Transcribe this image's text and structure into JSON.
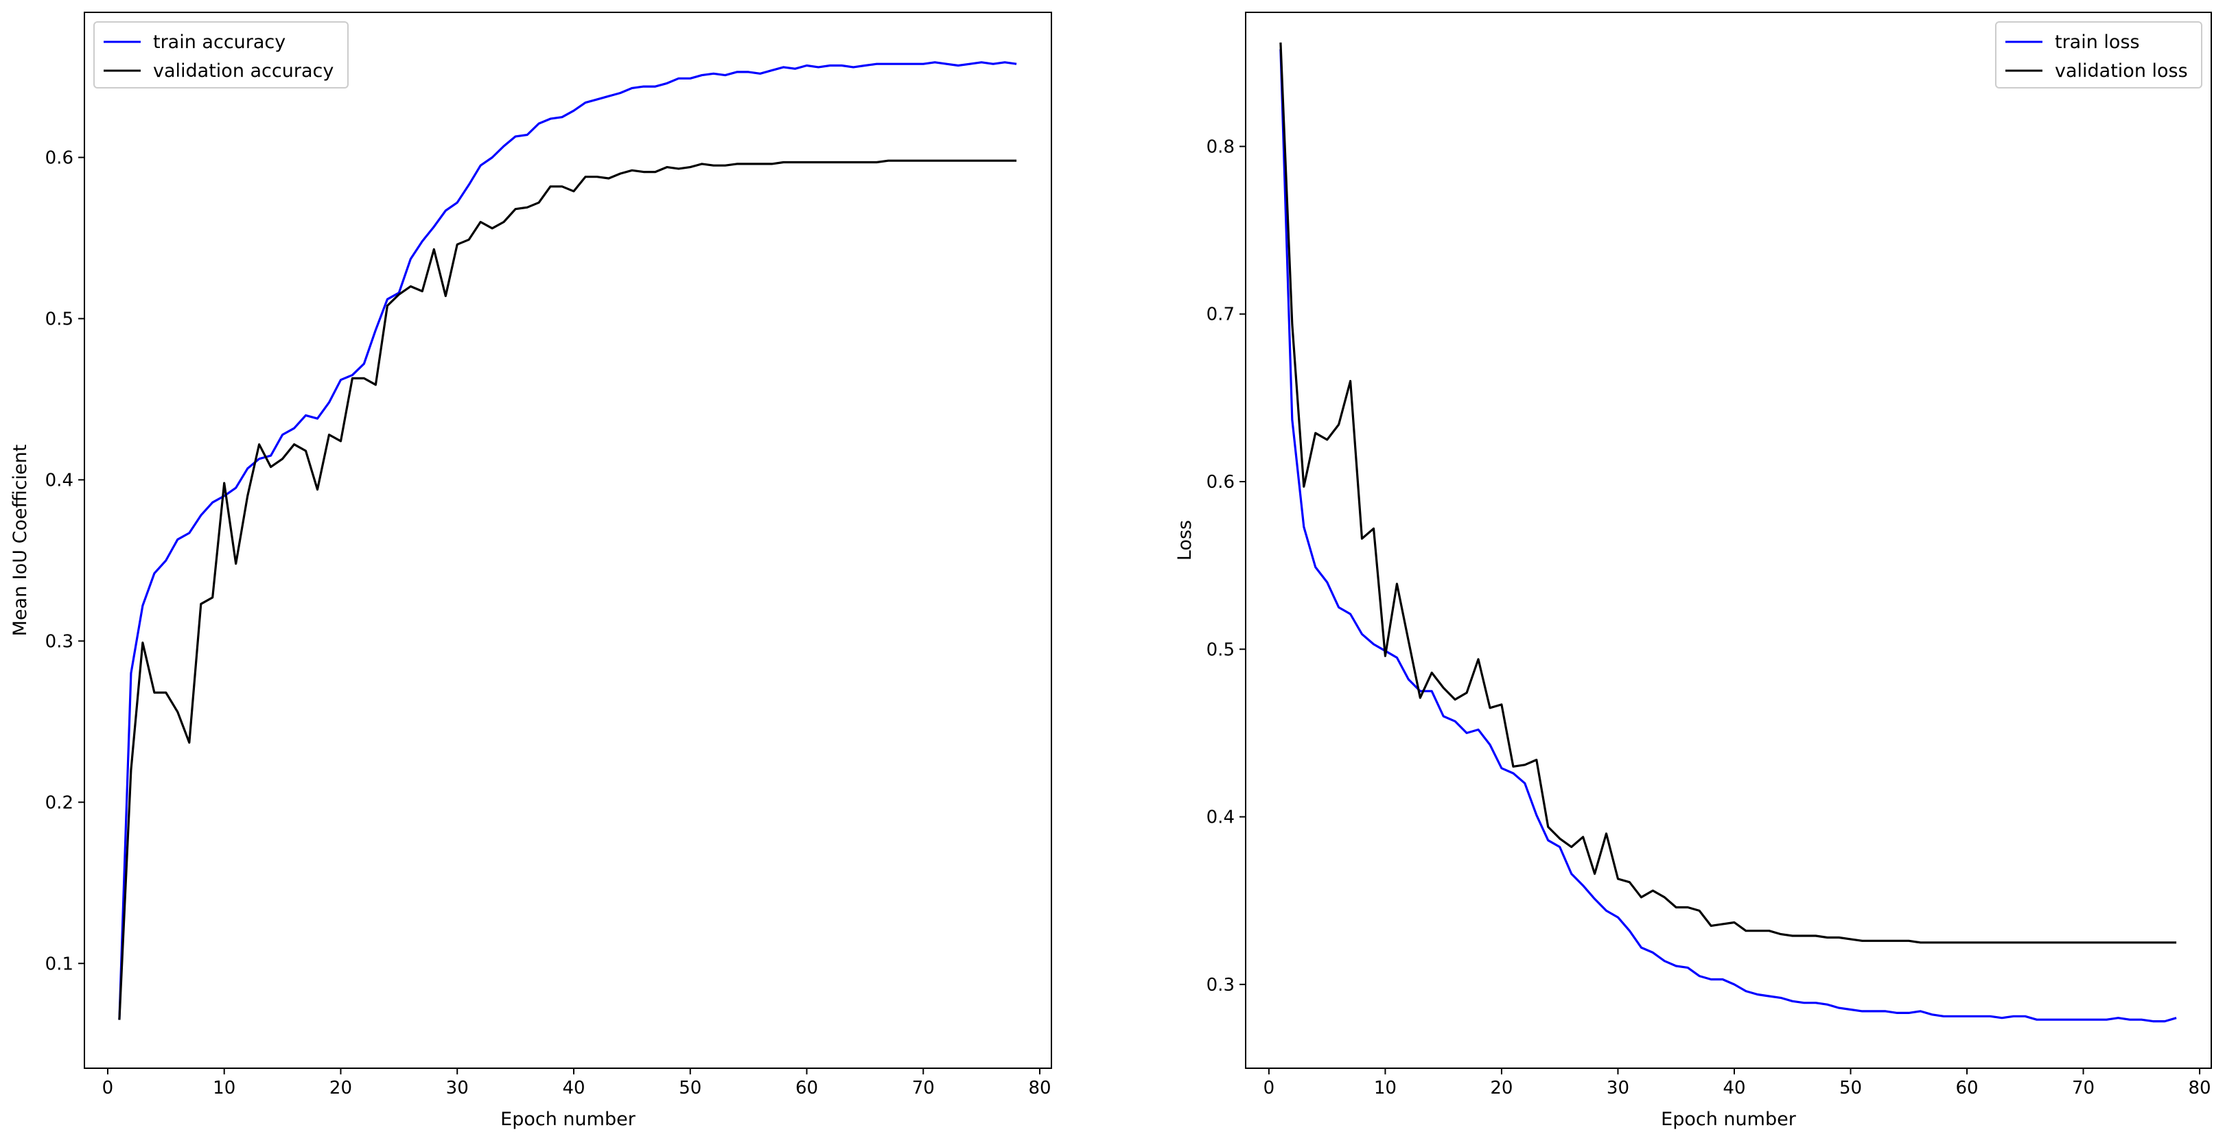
{
  "chart_data": [
    {
      "type": "line",
      "xlabel": "Epoch number",
      "ylabel": "Mean IoU Coefficient",
      "xlim": [
        -2,
        81
      ],
      "ylim": [
        0.035,
        0.69
      ],
      "xticks": [
        0,
        10,
        20,
        30,
        40,
        50,
        60,
        70,
        80
      ],
      "yticks": [
        0.1,
        0.2,
        0.3,
        0.4,
        0.5,
        0.6
      ],
      "legend_position": "upper-left",
      "grid": false,
      "x": [
        1,
        2,
        3,
        4,
        5,
        6,
        7,
        8,
        9,
        10,
        11,
        12,
        13,
        14,
        15,
        16,
        17,
        18,
        19,
        20,
        21,
        22,
        23,
        24,
        25,
        26,
        27,
        28,
        29,
        30,
        31,
        32,
        33,
        34,
        35,
        36,
        37,
        38,
        39,
        40,
        41,
        42,
        43,
        44,
        45,
        46,
        47,
        48,
        49,
        50,
        51,
        52,
        53,
        54,
        55,
        56,
        57,
        58,
        59,
        60,
        61,
        62,
        63,
        64,
        65,
        66,
        67,
        68,
        69,
        70,
        71,
        72,
        73,
        74,
        75,
        76,
        77,
        78
      ],
      "series": [
        {
          "name": "train accuracy",
          "color": "#0000ff",
          "values": [
            0.065,
            0.28,
            0.322,
            0.342,
            0.35,
            0.363,
            0.367,
            0.378,
            0.386,
            0.39,
            0.395,
            0.407,
            0.413,
            0.415,
            0.428,
            0.432,
            0.44,
            0.438,
            0.448,
            0.462,
            0.465,
            0.472,
            0.493,
            0.512,
            0.516,
            0.537,
            0.548,
            0.557,
            0.567,
            0.572,
            0.583,
            0.595,
            0.6,
            0.607,
            0.613,
            0.614,
            0.621,
            0.624,
            0.625,
            0.629,
            0.634,
            0.636,
            0.638,
            0.64,
            0.643,
            0.644,
            0.644,
            0.646,
            0.649,
            0.649,
            0.651,
            0.652,
            0.651,
            0.653,
            0.653,
            0.652,
            0.654,
            0.656,
            0.655,
            0.657,
            0.656,
            0.657,
            0.657,
            0.656,
            0.657,
            0.658,
            0.658,
            0.658,
            0.658,
            0.658,
            0.659,
            0.658,
            0.657,
            0.658,
            0.659,
            0.658,
            0.659,
            0.658
          ]
        },
        {
          "name": "validation accuracy",
          "color": "#000000",
          "values": [
            0.065,
            0.22,
            0.299,
            0.268,
            0.268,
            0.256,
            0.237,
            0.323,
            0.327,
            0.398,
            0.348,
            0.39,
            0.422,
            0.408,
            0.413,
            0.422,
            0.418,
            0.394,
            0.428,
            0.424,
            0.463,
            0.463,
            0.459,
            0.508,
            0.515,
            0.52,
            0.517,
            0.543,
            0.514,
            0.546,
            0.549,
            0.56,
            0.556,
            0.56,
            0.568,
            0.569,
            0.572,
            0.582,
            0.582,
            0.579,
            0.588,
            0.588,
            0.587,
            0.59,
            0.592,
            0.591,
            0.591,
            0.594,
            0.593,
            0.594,
            0.596,
            0.595,
            0.595,
            0.596,
            0.596,
            0.596,
            0.596,
            0.597,
            0.597,
            0.597,
            0.597,
            0.597,
            0.597,
            0.597,
            0.597,
            0.597,
            0.598,
            0.598,
            0.598,
            0.598,
            0.598,
            0.598,
            0.598,
            0.598,
            0.598,
            0.598,
            0.598,
            0.598
          ]
        }
      ]
    },
    {
      "type": "line",
      "xlabel": "Epoch number",
      "ylabel": "Loss",
      "xlim": [
        -2,
        81
      ],
      "ylim": [
        0.25,
        0.88
      ],
      "xticks": [
        0,
        10,
        20,
        30,
        40,
        50,
        60,
        70,
        80
      ],
      "yticks": [
        0.3,
        0.4,
        0.5,
        0.6,
        0.7,
        0.8
      ],
      "legend_position": "upper-right",
      "grid": false,
      "x": [
        1,
        2,
        3,
        4,
        5,
        6,
        7,
        8,
        9,
        10,
        11,
        12,
        13,
        14,
        15,
        16,
        17,
        18,
        19,
        20,
        21,
        22,
        23,
        24,
        25,
        26,
        27,
        28,
        29,
        30,
        31,
        32,
        33,
        34,
        35,
        36,
        37,
        38,
        39,
        40,
        41,
        42,
        43,
        44,
        45,
        46,
        47,
        48,
        49,
        50,
        51,
        52,
        53,
        54,
        55,
        56,
        57,
        58,
        59,
        60,
        61,
        62,
        63,
        64,
        65,
        66,
        67,
        68,
        69,
        70,
        71,
        72,
        73,
        74,
        75,
        76,
        77,
        78
      ],
      "series": [
        {
          "name": "train loss",
          "color": "#0000ff",
          "values": [
            0.858,
            0.637,
            0.573,
            0.549,
            0.54,
            0.525,
            0.521,
            0.509,
            0.503,
            0.499,
            0.495,
            0.482,
            0.475,
            0.475,
            0.46,
            0.457,
            0.45,
            0.452,
            0.443,
            0.429,
            0.426,
            0.42,
            0.401,
            0.386,
            0.382,
            0.366,
            0.359,
            0.351,
            0.344,
            0.34,
            0.332,
            0.322,
            0.319,
            0.314,
            0.311,
            0.31,
            0.305,
            0.303,
            0.303,
            0.3,
            0.296,
            0.294,
            0.293,
            0.292,
            0.29,
            0.289,
            0.289,
            0.288,
            0.286,
            0.285,
            0.284,
            0.284,
            0.284,
            0.283,
            0.283,
            0.284,
            0.282,
            0.281,
            0.281,
            0.281,
            0.281,
            0.281,
            0.28,
            0.281,
            0.281,
            0.279,
            0.279,
            0.279,
            0.279,
            0.279,
            0.279,
            0.279,
            0.28,
            0.279,
            0.279,
            0.278,
            0.278,
            0.28
          ]
        },
        {
          "name": "validation loss",
          "color": "#000000",
          "values": [
            0.862,
            0.694,
            0.597,
            0.629,
            0.625,
            0.634,
            0.66,
            0.566,
            0.572,
            0.496,
            0.539,
            0.505,
            0.471,
            0.486,
            0.477,
            0.47,
            0.474,
            0.494,
            0.465,
            0.467,
            0.43,
            0.431,
            0.434,
            0.394,
            0.387,
            0.382,
            0.388,
            0.366,
            0.39,
            0.363,
            0.361,
            0.352,
            0.356,
            0.352,
            0.346,
            0.346,
            0.344,
            0.335,
            0.336,
            0.337,
            0.332,
            0.332,
            0.332,
            0.33,
            0.329,
            0.329,
            0.329,
            0.328,
            0.328,
            0.327,
            0.326,
            0.326,
            0.326,
            0.326,
            0.326,
            0.325,
            0.325,
            0.325,
            0.325,
            0.325,
            0.325,
            0.325,
            0.325,
            0.325,
            0.325,
            0.325,
            0.325,
            0.325,
            0.325,
            0.325,
            0.325,
            0.325,
            0.325,
            0.325,
            0.325,
            0.325,
            0.325,
            0.325
          ]
        }
      ]
    }
  ]
}
